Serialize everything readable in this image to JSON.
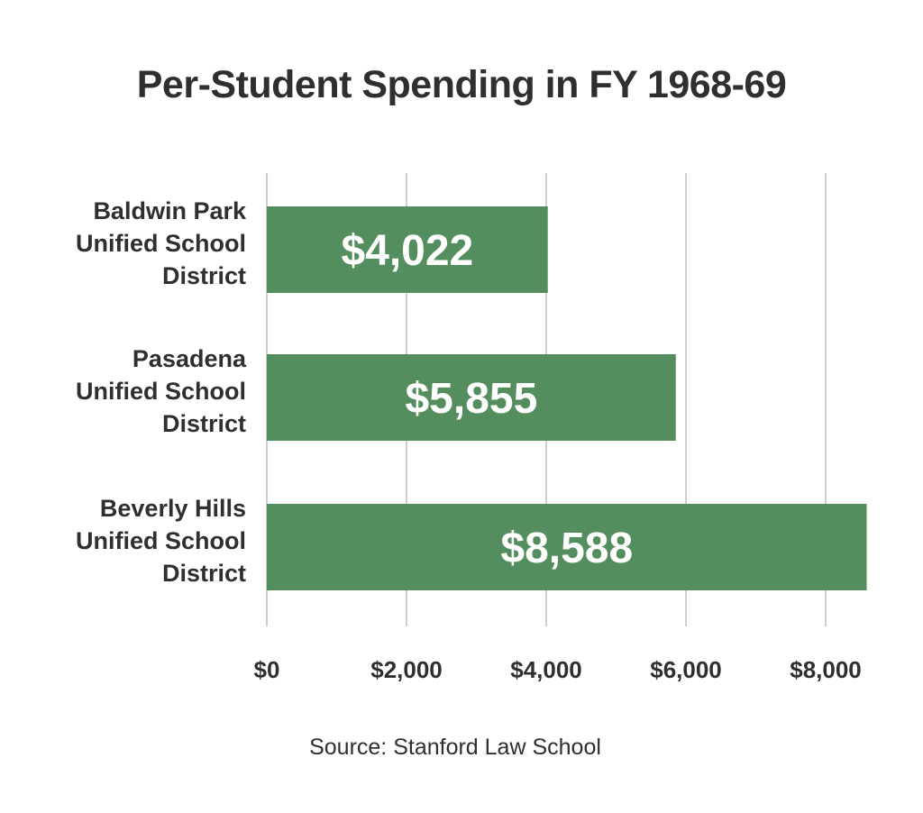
{
  "chart_data": {
    "type": "bar",
    "orientation": "horizontal",
    "title": "Per-Student Spending in FY 1968-69",
    "categories": [
      [
        "Baldwin Park",
        "Unified School",
        "District"
      ],
      [
        "Pasadena",
        "Unified School",
        "District"
      ],
      [
        "Beverly  Hills",
        "Unified School",
        "District"
      ]
    ],
    "values": [
      4022,
      5855,
      8588
    ],
    "value_labels": [
      "$4,022",
      "$5,855",
      "$8,588"
    ],
    "xlim": [
      0,
      8588
    ],
    "x_ticks": [
      0,
      2000,
      4000,
      6000,
      8000
    ],
    "x_tick_labels": [
      "$0",
      "$2,000",
      "$4,000",
      "$6,000",
      "$8,000"
    ],
    "grid": "vertical",
    "legend": "none",
    "bar_color": "#558e5e",
    "source": "Source: Stanford Law School"
  }
}
